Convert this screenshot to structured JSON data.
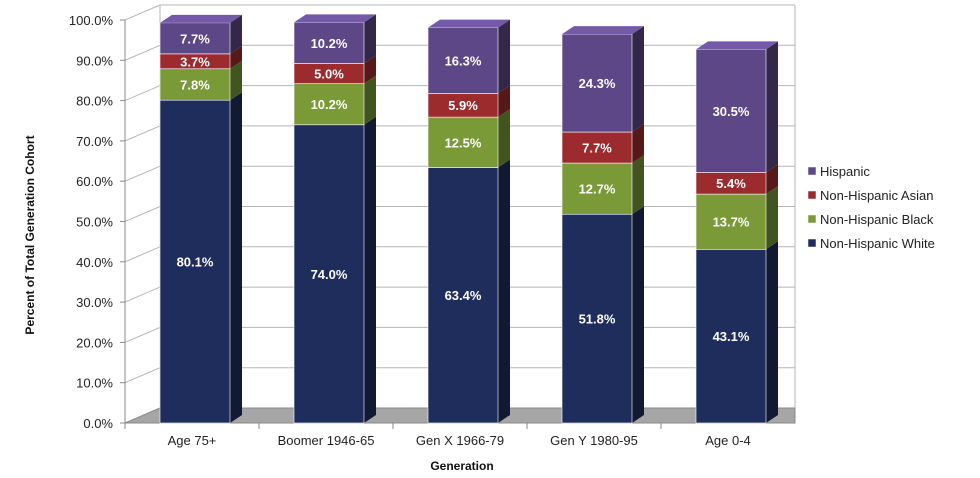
{
  "chart_data": {
    "type": "bar",
    "stacked": true,
    "categories": [
      "Age 75+",
      "Boomer 1946-65",
      "Gen X 1966-79",
      "Gen Y 1980-95",
      "Age 0-4"
    ],
    "series": [
      {
        "name": "Non-Hispanic White",
        "color": "#1f2d5c",
        "values": [
          80.1,
          74.0,
          63.4,
          51.8,
          43.1
        ],
        "labels": [
          "80.1%",
          "74.0%",
          "63.4%",
          "51.8%",
          "43.1%"
        ]
      },
      {
        "name": "Non-Hispanic Black",
        "color": "#7a9a37",
        "values": [
          7.8,
          10.2,
          12.5,
          12.7,
          13.7
        ],
        "labels": [
          "7.8%",
          "10.2%",
          "12.5%",
          "12.7%",
          "13.7%"
        ]
      },
      {
        "name": "Non-Hispanic Asian",
        "color": "#9c2b2e",
        "values": [
          3.7,
          5.0,
          5.9,
          7.7,
          5.4
        ],
        "labels": [
          "3.7%",
          "5.0%",
          "5.9%",
          "7.7%",
          "5.4%"
        ]
      },
      {
        "name": "Hispanic",
        "color": "#5d4787",
        "values": [
          7.7,
          10.2,
          16.3,
          24.3,
          30.5
        ],
        "labels": [
          "7.7%",
          "10.2%",
          "16.3%",
          "24.3%",
          "30.5%"
        ]
      }
    ],
    "legend_order": [
      "Hispanic",
      "Non-Hispanic Asian",
      "Non-Hispanic Black",
      "Non-Hispanic White"
    ],
    "xlabel": "Generation",
    "ylabel": "Percent of Total Generation Cohort",
    "ylim": [
      0,
      100
    ],
    "yticks": [
      "0.0%",
      "10.0%",
      "20.0%",
      "30.0%",
      "40.0%",
      "50.0%",
      "60.0%",
      "70.0%",
      "80.0%",
      "90.0%",
      "100.0%"
    ],
    "grid": true,
    "legend_position": "right"
  }
}
